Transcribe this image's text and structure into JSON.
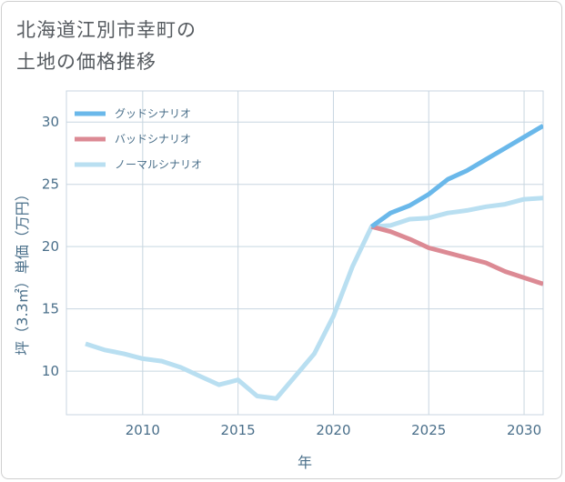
{
  "page": {
    "title_line1": "北海道江別市幸町の",
    "title_line2": "土地の価格推移"
  },
  "chart_data": {
    "type": "line",
    "title": "北海道江別市幸町の土地の価格推移",
    "xlabel": "年",
    "ylabel": "坪（3.3㎡）単価（万円）",
    "xlim": [
      2006,
      2031
    ],
    "ylim": [
      6.5,
      32.5
    ],
    "x_ticks": [
      2010,
      2015,
      2020,
      2025,
      2030
    ],
    "y_ticks": [
      10,
      15,
      20,
      25,
      30
    ],
    "grid": true,
    "legend_position": "top-left",
    "series": [
      {
        "name": "グッドシナリオ",
        "color": "#6ab8ea",
        "x": [
          2022,
          2023,
          2024,
          2025,
          2026,
          2027,
          2028,
          2029,
          2030,
          2031
        ],
        "values": [
          21.6,
          22.7,
          23.3,
          24.2,
          25.4,
          26.1,
          27.0,
          27.9,
          28.8,
          29.7
        ]
      },
      {
        "name": "バッドシナリオ",
        "color": "#dc8a94",
        "x": [
          2022,
          2023,
          2024,
          2025,
          2026,
          2027,
          2028,
          2029,
          2030,
          2031
        ],
        "values": [
          21.6,
          21.2,
          20.6,
          19.9,
          19.5,
          19.1,
          18.7,
          18.0,
          17.5,
          17.0
        ]
      },
      {
        "name": "ノーマルシナリオ",
        "color": "#b9dff1",
        "x": [
          2007,
          2008,
          2009,
          2010,
          2011,
          2012,
          2013,
          2014,
          2015,
          2016,
          2017,
          2018,
          2019,
          2020,
          2021,
          2022,
          2023,
          2024,
          2025,
          2026,
          2027,
          2028,
          2029,
          2030,
          2031
        ],
        "values": [
          12.2,
          11.7,
          11.4,
          11.0,
          10.8,
          10.3,
          9.6,
          8.9,
          9.3,
          8.0,
          7.8,
          9.6,
          11.4,
          14.4,
          18.4,
          21.6,
          21.7,
          22.2,
          22.3,
          22.7,
          22.9,
          23.2,
          23.4,
          23.8,
          23.9
        ]
      }
    ]
  }
}
